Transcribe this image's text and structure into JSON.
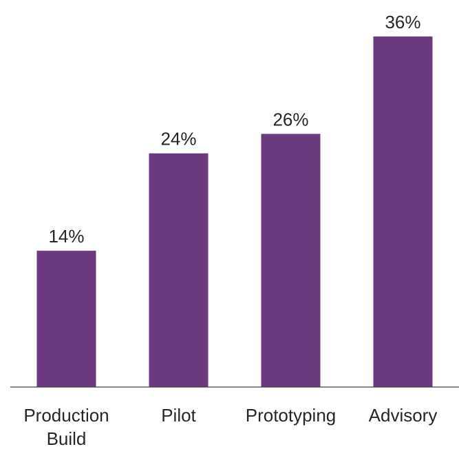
{
  "chart_data": {
    "type": "bar",
    "title": "",
    "xlabel": "",
    "ylabel": "",
    "categories": [
      [
        "Production",
        "Build"
      ],
      [
        "Pilot"
      ],
      [
        "Prototyping"
      ],
      [
        "Advisory"
      ]
    ],
    "values": [
      14,
      24,
      26,
      36
    ],
    "data_labels": [
      "14%",
      "24%",
      "26%",
      "36%"
    ],
    "unit": "%",
    "ylim": [
      0,
      36
    ],
    "grid": false,
    "legend": "none",
    "colors": {
      "bar": "#6d3a7f",
      "axis": "#404040",
      "text": "#262626"
    }
  }
}
